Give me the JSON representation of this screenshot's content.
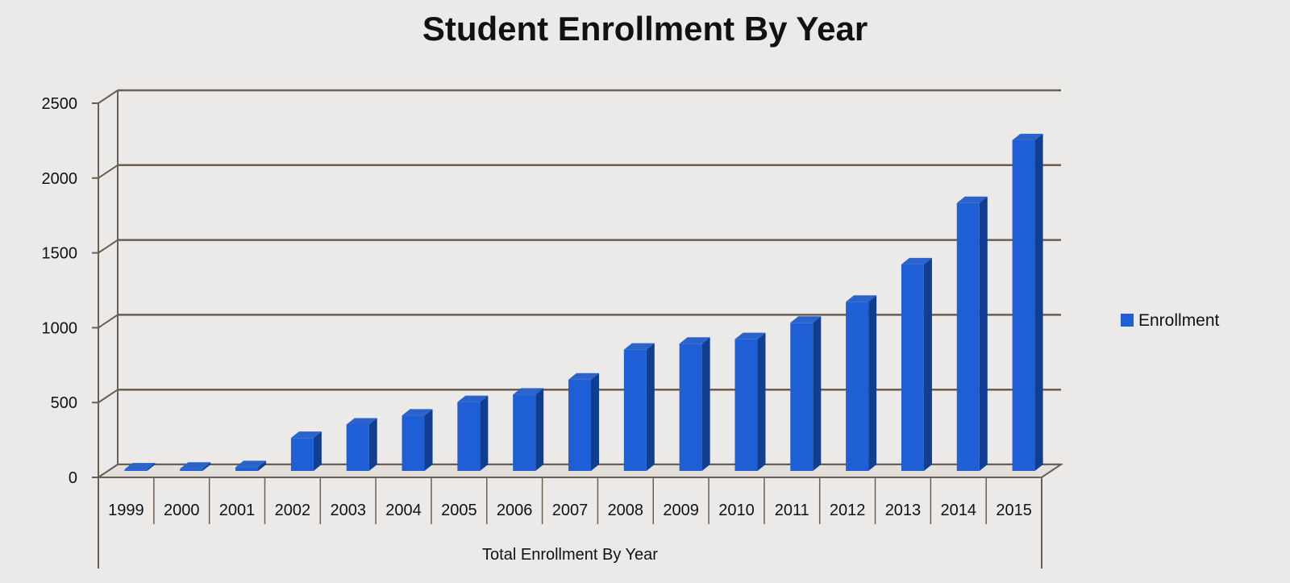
{
  "chart_data": {
    "type": "bar",
    "title": "Student Enrollment By Year",
    "xlabel": "Total Enrollment By Year",
    "ylabel": "",
    "ylim": [
      0,
      2500
    ],
    "yticks": [
      0,
      500,
      1000,
      1500,
      2000,
      2500
    ],
    "grid": true,
    "legend_position": "right",
    "categories": [
      "1999",
      "2000",
      "2001",
      "2002",
      "2003",
      "2004",
      "2005",
      "2006",
      "2007",
      "2008",
      "2009",
      "2010",
      "2011",
      "2012",
      "2013",
      "2014",
      "2015"
    ],
    "series": [
      {
        "name": "Enrollment",
        "color": "#1F5FD6",
        "values": [
          10,
          15,
          25,
          220,
          310,
          370,
          460,
          510,
          610,
          810,
          850,
          880,
          990,
          1130,
          1380,
          1790,
          2210
        ]
      }
    ]
  }
}
